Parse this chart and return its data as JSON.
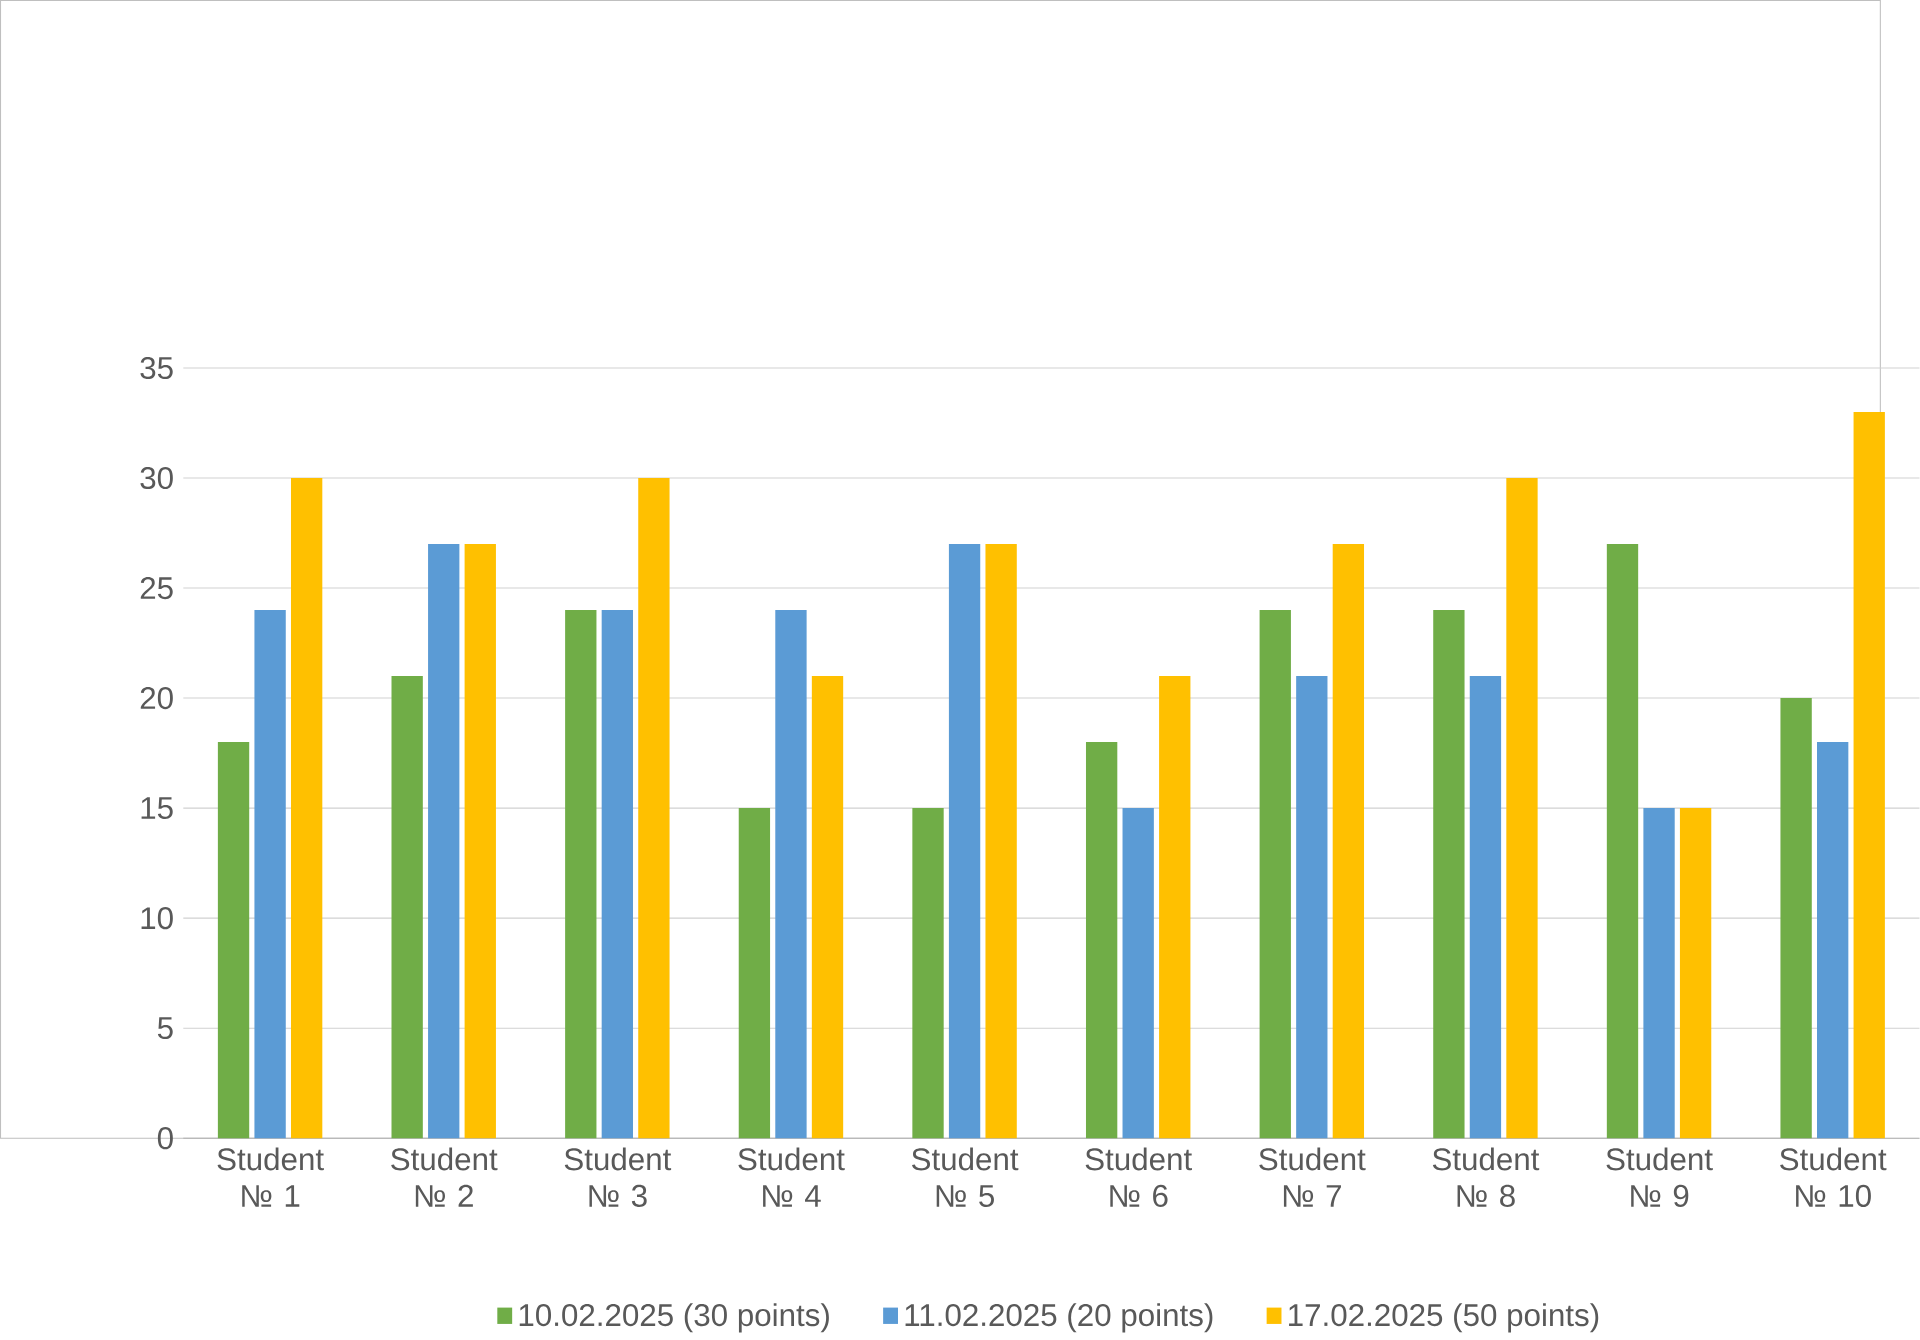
{
  "chart_data": {
    "type": "bar",
    "categories": [
      "Student № 1",
      "Student № 2",
      "Student № 3",
      "Student № 4",
      "Student № 5",
      "Student № 6",
      "Student № 7",
      "Student № 8",
      "Student № 9",
      "Student № 10"
    ],
    "series": [
      {
        "name": "10.02.2025 (30 points)",
        "color": "#70ad47",
        "values": [
          18,
          21,
          24,
          15,
          15,
          18,
          24,
          24,
          27,
          20
        ]
      },
      {
        "name": "11.02.2025 (20 points)",
        "color": "#5b9bd5",
        "values": [
          24,
          27,
          24,
          24,
          27,
          15,
          21,
          21,
          15,
          18
        ]
      },
      {
        "name": "17.02.2025 (50 points)",
        "color": "#ffc000",
        "values": [
          30,
          27,
          30,
          21,
          27,
          21,
          27,
          30,
          15,
          33
        ]
      }
    ],
    "ylim": [
      0,
      35
    ],
    "yticks": [
      0,
      5,
      10,
      15,
      20,
      25,
      30,
      35
    ],
    "grid": "y",
    "legend": "bottom"
  }
}
